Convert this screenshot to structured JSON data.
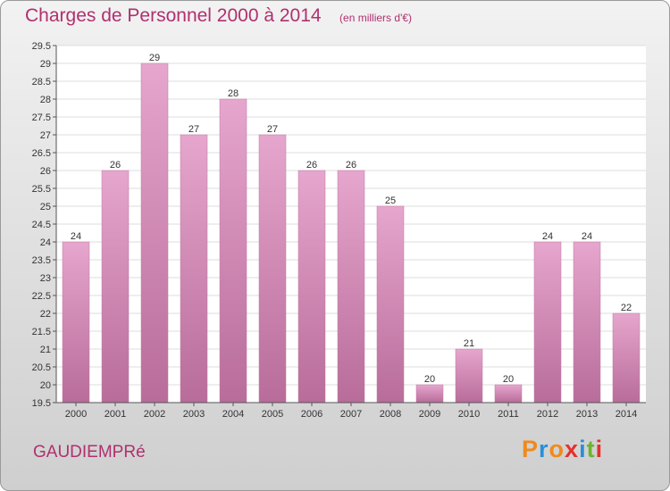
{
  "header": {
    "title": "Charges de Personnel 2000 à 2014",
    "subtitle": "(en milliers d'€)"
  },
  "footer": {
    "commune": "GAUDIEMPRé",
    "logo_letters": [
      "P",
      "r",
      "o",
      "x",
      "i",
      "t",
      "i"
    ],
    "logo_colors": [
      "#f08a1c",
      "#2a8fd6",
      "#f08a1c",
      "#e6302b",
      "#2a8fd6",
      "#6cb42c",
      "#e6302b"
    ]
  },
  "chart_data": {
    "type": "bar",
    "title": "Charges de Personnel 2000 à 2014",
    "subtitle": "(en milliers d'€)",
    "categories": [
      "2000",
      "2001",
      "2002",
      "2003",
      "2004",
      "2005",
      "2006",
      "2007",
      "2008",
      "2009",
      "2010",
      "2011",
      "2012",
      "2013",
      "2014"
    ],
    "values": [
      24,
      26,
      29,
      27,
      28,
      27,
      26,
      26,
      25,
      20,
      21,
      20,
      24,
      24,
      22
    ],
    "ylim": [
      19.5,
      29.5
    ],
    "yticks": [
      "19.5",
      "20",
      "20.5",
      "21",
      "21.5",
      "22",
      "22.5",
      "23",
      "23.5",
      "24",
      "24.5",
      "25",
      "25.5",
      "26",
      "26.5",
      "27",
      "27.5",
      "28",
      "28.5",
      "29",
      "29.5"
    ],
    "bar_color": "#d98ab8",
    "grid": true
  }
}
